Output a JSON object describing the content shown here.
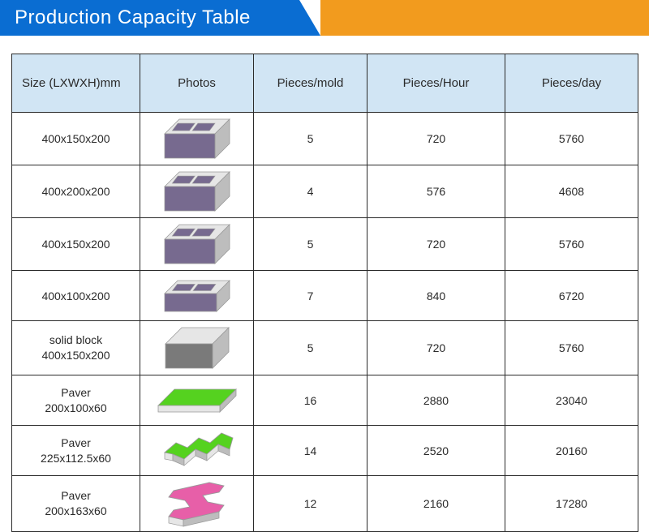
{
  "title": "Production Capacity Table",
  "colors": {
    "title_bg_blue": "#0a6dd2",
    "title_bg_orange": "#f29b1e",
    "header_bg": "#d1e5f4",
    "border": "#2b2b2b",
    "text": "#2a2a2a"
  },
  "columns": [
    "Size (LXWXH)mm",
    "Photos",
    "Pieces/mold",
    "Pieces/Hour",
    "Pieces/day"
  ],
  "rows": [
    {
      "size": "400x150x200",
      "photo": "hollow2",
      "photo_color": "#776a8f",
      "mold": "5",
      "hour": "720",
      "day": "5760"
    },
    {
      "size": "400x200x200",
      "photo": "hollow2",
      "photo_color": "#776a8f",
      "mold": "4",
      "hour": "576",
      "day": "4608"
    },
    {
      "size": "400x150x200",
      "photo": "hollow2",
      "photo_color": "#776a8f",
      "mold": "5",
      "hour": "720",
      "day": "5760"
    },
    {
      "size": "400x100x200",
      "photo": "hollow2_thin",
      "photo_color": "#776a8f",
      "mold": "7",
      "hour": "840",
      "day": "6720"
    },
    {
      "size_line1": "solid block",
      "size_line2": "400x150x200",
      "photo": "solid",
      "photo_color": "#7a7a7a",
      "mold": "5",
      "hour": "720",
      "day": "5760"
    },
    {
      "size_line1": "Paver",
      "size_line2": "200x100x60",
      "photo": "paver_rect",
      "photo_color": "#55d21f",
      "mold": "16",
      "hour": "2880",
      "day": "23040"
    },
    {
      "size_line1": "Paver",
      "size_line2": "225x112.5x60",
      "photo": "paver_zigzag",
      "photo_color": "#55d21f",
      "mold": "14",
      "hour": "2520",
      "day": "20160"
    },
    {
      "size_line1": "Paver",
      "size_line2": "200x163x60",
      "photo": "paver_ibeam",
      "photo_color": "#e75fa8",
      "mold": "12",
      "hour": "2160",
      "day": "17280"
    }
  ],
  "photo_defs": {
    "common": {
      "edge_light": "#e6e6e6",
      "edge_dark": "#bdbdbd",
      "stroke": "#999999"
    }
  }
}
